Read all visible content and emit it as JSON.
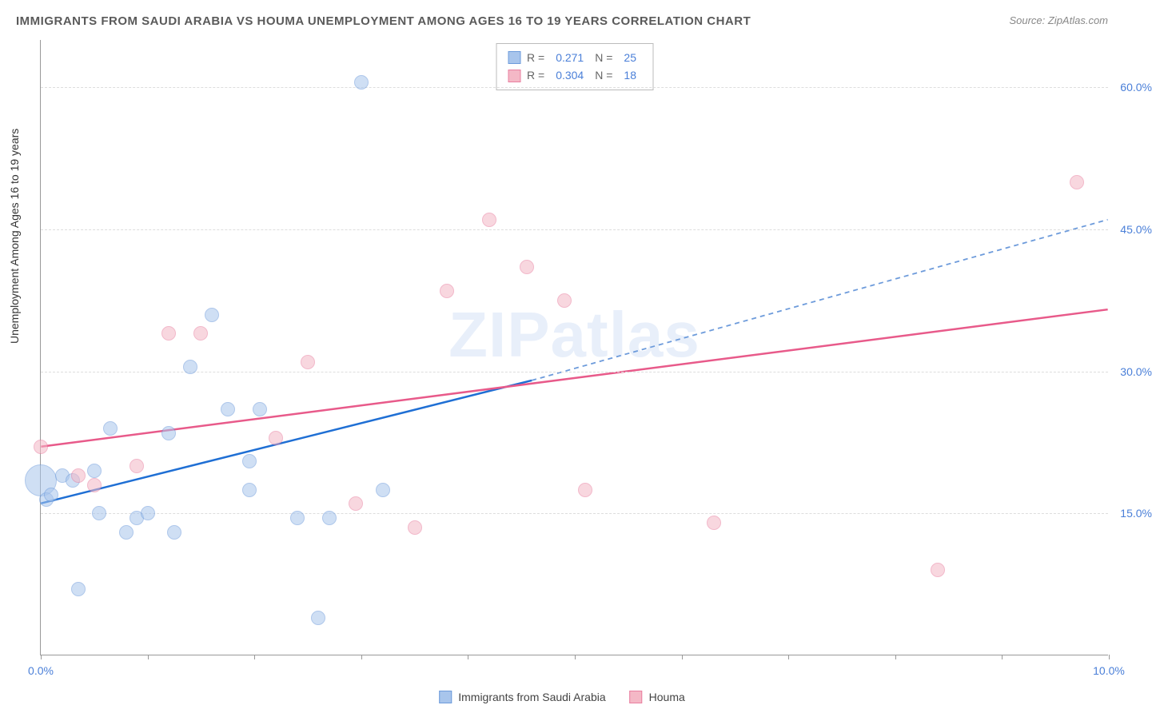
{
  "title": "IMMIGRANTS FROM SAUDI ARABIA VS HOUMA UNEMPLOYMENT AMONG AGES 16 TO 19 YEARS CORRELATION CHART",
  "source": "Source: ZipAtlas.com",
  "watermark": "ZIPatlas",
  "ylabel": "Unemployment Among Ages 16 to 19 years",
  "chart": {
    "type": "scatter",
    "background_color": "#ffffff",
    "grid_color": "#dddddd",
    "grid_dash": "4,4",
    "axis_color": "#999999",
    "label_color": "#4a7fd8",
    "title_fontsize": 15,
    "label_fontsize": 14,
    "xlim": [
      0,
      10
    ],
    "ylim": [
      0,
      65
    ],
    "xticks": [
      0,
      1,
      2,
      3,
      4,
      5,
      6,
      7,
      8,
      9,
      10
    ],
    "xtick_labels": {
      "0": "0.0%",
      "10": "10.0%"
    },
    "yticks": [
      15,
      30,
      45,
      60
    ],
    "ytick_labels": [
      "15.0%",
      "30.0%",
      "45.0%",
      "60.0%"
    ]
  },
  "series": [
    {
      "name": "Immigrants from Saudi Arabia",
      "key": "saudi",
      "fill": "#a8c5ec",
      "stroke": "#6d9bdb",
      "fill_opacity": 0.55,
      "marker_radius": 9,
      "trend": {
        "x1": 0,
        "y1": 16.0,
        "x2": 4.6,
        "y2": 29.0,
        "x2b": 10,
        "y2b": 46.0,
        "solid_color": "#1f6fd4",
        "dash_color": "#6d9bdb",
        "width": 2.5
      },
      "R": "0.271",
      "N": "25",
      "points": [
        {
          "x": 0.0,
          "y": 18.5,
          "r": 20
        },
        {
          "x": 0.05,
          "y": 16.5,
          "r": 9
        },
        {
          "x": 0.1,
          "y": 17.0,
          "r": 9
        },
        {
          "x": 0.2,
          "y": 19.0,
          "r": 9
        },
        {
          "x": 0.3,
          "y": 18.5,
          "r": 9
        },
        {
          "x": 0.35,
          "y": 7.0,
          "r": 9
        },
        {
          "x": 0.5,
          "y": 19.5,
          "r": 9
        },
        {
          "x": 0.55,
          "y": 15.0,
          "r": 9
        },
        {
          "x": 0.65,
          "y": 24.0,
          "r": 9
        },
        {
          "x": 0.8,
          "y": 13.0,
          "r": 9
        },
        {
          "x": 0.9,
          "y": 14.5,
          "r": 9
        },
        {
          "x": 1.0,
          "y": 15.0,
          "r": 9
        },
        {
          "x": 1.2,
          "y": 23.5,
          "r": 9
        },
        {
          "x": 1.25,
          "y": 13.0,
          "r": 9
        },
        {
          "x": 1.4,
          "y": 30.5,
          "r": 9
        },
        {
          "x": 1.6,
          "y": 36.0,
          "r": 9
        },
        {
          "x": 1.75,
          "y": 26.0,
          "r": 9
        },
        {
          "x": 1.95,
          "y": 17.5,
          "r": 9
        },
        {
          "x": 1.95,
          "y": 20.5,
          "r": 9
        },
        {
          "x": 2.05,
          "y": 26.0,
          "r": 9
        },
        {
          "x": 2.4,
          "y": 14.5,
          "r": 9
        },
        {
          "x": 2.6,
          "y": 4.0,
          "r": 9
        },
        {
          "x": 2.7,
          "y": 14.5,
          "r": 9
        },
        {
          "x": 3.2,
          "y": 17.5,
          "r": 9
        },
        {
          "x": 3.0,
          "y": 60.5,
          "r": 9
        }
      ]
    },
    {
      "name": "Houma",
      "key": "houma",
      "fill": "#f4b8c6",
      "stroke": "#e97fa0",
      "fill_opacity": 0.55,
      "marker_radius": 9,
      "trend": {
        "x1": 0,
        "y1": 22.0,
        "x2": 10,
        "y2": 36.5,
        "solid_color": "#e85a8a",
        "width": 2.5
      },
      "R": "0.304",
      "N": "18",
      "points": [
        {
          "x": 0.0,
          "y": 22.0,
          "r": 9
        },
        {
          "x": 0.35,
          "y": 19.0,
          "r": 9
        },
        {
          "x": 0.5,
          "y": 18.0,
          "r": 9
        },
        {
          "x": 0.9,
          "y": 20.0,
          "r": 9
        },
        {
          "x": 1.2,
          "y": 34.0,
          "r": 9
        },
        {
          "x": 1.5,
          "y": 34.0,
          "r": 9
        },
        {
          "x": 2.2,
          "y": 23.0,
          "r": 9
        },
        {
          "x": 2.5,
          "y": 31.0,
          "r": 9
        },
        {
          "x": 2.95,
          "y": 16.0,
          "r": 9
        },
        {
          "x": 3.5,
          "y": 13.5,
          "r": 9
        },
        {
          "x": 3.8,
          "y": 38.5,
          "r": 9
        },
        {
          "x": 4.2,
          "y": 46.0,
          "r": 9
        },
        {
          "x": 4.55,
          "y": 41.0,
          "r": 9
        },
        {
          "x": 4.9,
          "y": 37.5,
          "r": 9
        },
        {
          "x": 5.1,
          "y": 17.5,
          "r": 9
        },
        {
          "x": 6.3,
          "y": 14.0,
          "r": 9
        },
        {
          "x": 8.4,
          "y": 9.0,
          "r": 9
        },
        {
          "x": 9.7,
          "y": 50.0,
          "r": 9
        }
      ]
    }
  ],
  "legend": {
    "top": {
      "rows": [
        {
          "swatch_fill": "#a8c5ec",
          "swatch_stroke": "#6d9bdb",
          "R": "0.271",
          "N": "25"
        },
        {
          "swatch_fill": "#f4b8c6",
          "swatch_stroke": "#e97fa0",
          "R": "0.304",
          "N": "18"
        }
      ]
    },
    "bottom": [
      {
        "swatch_fill": "#a8c5ec",
        "swatch_stroke": "#6d9bdb",
        "label": "Immigrants from Saudi Arabia"
      },
      {
        "swatch_fill": "#f4b8c6",
        "swatch_stroke": "#e97fa0",
        "label": "Houma"
      }
    ]
  }
}
